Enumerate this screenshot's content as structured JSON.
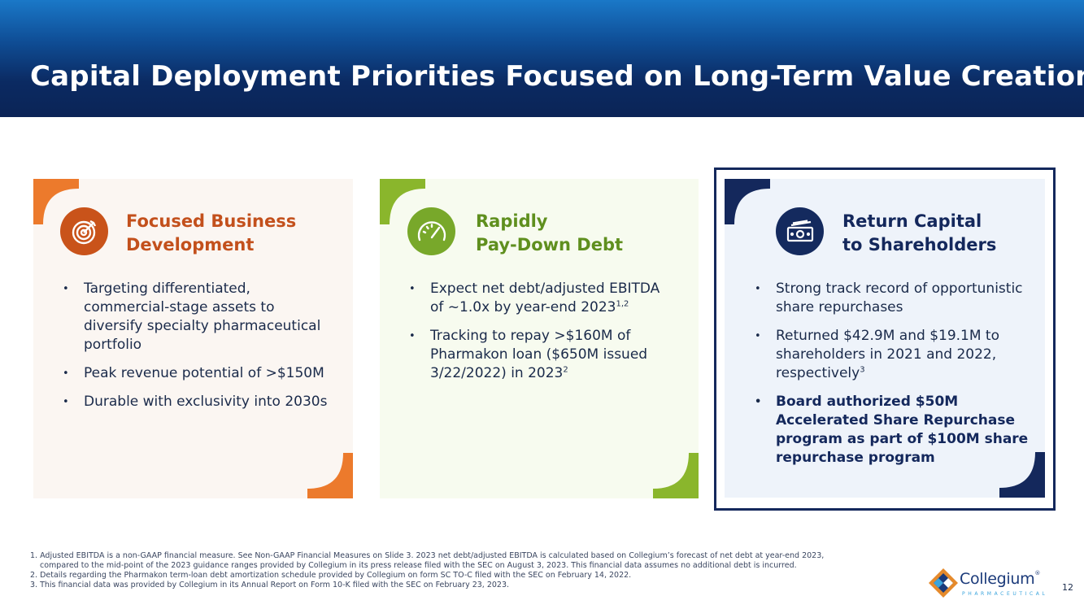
{
  "header": {
    "title": "Capital Deployment Priorities Focused on Long-Term Value Creation"
  },
  "colors": {
    "orange": "#ec7a2c",
    "green": "#8ab62c",
    "navy": "#14285c"
  },
  "cards": [
    {
      "title_line1": "Focused Business",
      "title_line2": "Development",
      "icon": "target-icon",
      "bullets": [
        "Targeting differentiated, commercial-stage assets to diversify specialty pharmaceutical portfolio",
        "Peak revenue potential of >$150M",
        "Durable with exclusivity into 2030s"
      ]
    },
    {
      "title_line1": "Rapidly",
      "title_line2": "Pay-Down Debt",
      "icon": "speedometer-icon",
      "bullets": [
        {
          "text": "Expect net debt/adjusted EBITDA of ~1.0x by year-end 2023",
          "sup": "1,2"
        },
        {
          "text": "Tracking to repay >$160M of Pharmakon loan ($650M issued 3/22/2022) in 2023",
          "sup": "2"
        }
      ]
    },
    {
      "title_line1": "Return Capital",
      "title_line2": "to Shareholders",
      "icon": "cash-icon",
      "bullets": [
        {
          "text": "Strong track record of opportunistic share repurchases"
        },
        {
          "text": "Returned $42.9M and $19.1M to shareholders in 2021 and 2022, respectively",
          "sup": "3"
        },
        {
          "text": "Board authorized $50M Accelerated Share Repurchase program as part of $100M share repurchase program"
        }
      ]
    }
  ],
  "footnotes": [
    "1. Adjusted EBITDA is a non-GAAP financial measure. See Non-GAAP Financial Measures on Slide 3. 2023 net debt/adjusted EBITDA is calculated based on Collegium’s forecast of net debt at year-end 2023,",
    "compared to the mid-point of the 2023 guidance ranges provided by Collegium in its press release filed with the SEC on August 3, 2023. This financial data assumes no additional debt is incurred.",
    "2. Details regarding the Pharmakon term-loan debt amortization schedule provided by Collegium on form SC TO-C filed with the SEC on February 14, 2022.",
    "3. This financial data was provided by Collegium in its Annual Report on Form 10-K filed with the SEC on February 23, 2023."
  ],
  "logo": {
    "name": "Collegium",
    "tm": "®",
    "sub": "PHARMACEUTICAL"
  },
  "page_number": "12"
}
